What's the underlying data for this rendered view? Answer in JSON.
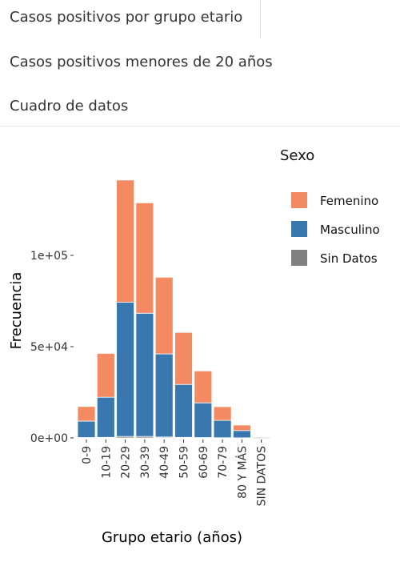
{
  "tabs": [
    {
      "label": "Casos positivos por grupo etario"
    },
    {
      "label": "Casos positivos menores de 20 años"
    },
    {
      "label": "Cuadro de datos"
    }
  ],
  "chart_data": {
    "type": "bar",
    "stacked": true,
    "categories": [
      "0-9",
      "10-19",
      "20-29",
      "30-39",
      "40-49",
      "50-59",
      "60-69",
      "70-79",
      "80 Y MÁS",
      "SIN DATOS"
    ],
    "series": [
      {
        "name": "Femenino",
        "color": "#F48A62",
        "values": [
          8000,
          24000,
          67000,
          60500,
          42000,
          28500,
          17500,
          7500,
          3000,
          0
        ]
      },
      {
        "name": "Masculino",
        "color": "#3977AF",
        "values": [
          9000,
          22000,
          73500,
          67500,
          45500,
          29000,
          19000,
          9500,
          4000,
          0
        ]
      },
      {
        "name": "Sin Datos",
        "color": "#808080",
        "values": [
          200,
          300,
          800,
          800,
          500,
          300,
          200,
          100,
          50,
          0
        ]
      }
    ],
    "legend_title": "Sexo",
    "legend_position": "right",
    "xlabel": "Grupo etario (años)",
    "ylabel": "Frecuencia",
    "ylim": [
      0,
      145000
    ],
    "yticks": [
      {
        "value": 0,
        "label": "0e+00"
      },
      {
        "value": 50000,
        "label": "5e+04"
      },
      {
        "value": 100000,
        "label": "1e+05"
      }
    ],
    "grid": false
  }
}
